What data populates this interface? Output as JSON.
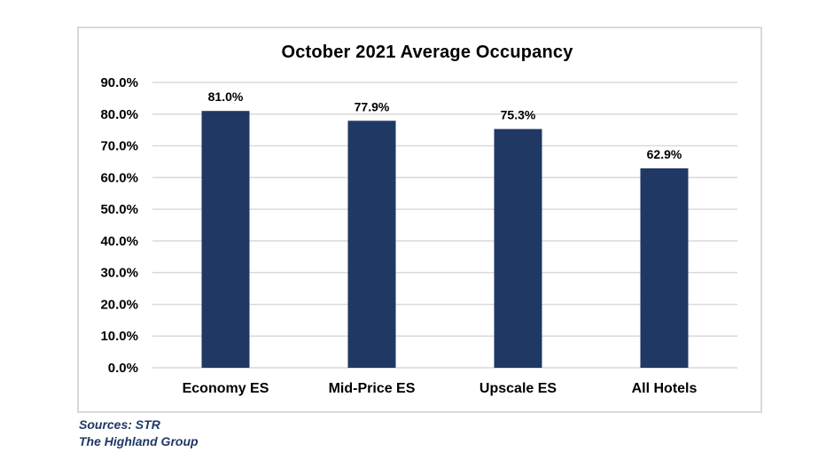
{
  "chart_data": {
    "type": "bar",
    "title": "October 2021 Average Occupancy",
    "categories": [
      "Economy ES",
      "Mid-Price ES",
      "Upscale ES",
      "All Hotels"
    ],
    "values": [
      81.0,
      77.9,
      75.3,
      62.9
    ],
    "data_labels": [
      "81.0%",
      "77.9%",
      "75.3%",
      "62.9%"
    ],
    "ylim": [
      0,
      90
    ],
    "yticks": [
      0,
      10,
      20,
      30,
      40,
      50,
      60,
      70,
      80,
      90
    ],
    "ytick_labels": [
      "0.0%",
      "10.0%",
      "20.0%",
      "30.0%",
      "40.0%",
      "50.0%",
      "60.0%",
      "70.0%",
      "80.0%",
      "90.0%"
    ],
    "xlabel": "",
    "ylabel": "",
    "grid": true,
    "legend": "none",
    "bar_color": "#1f3864",
    "grid_color": "#d9d9d9"
  },
  "sources": {
    "line1": "Sources: STR",
    "line2": "The Highland Group"
  }
}
